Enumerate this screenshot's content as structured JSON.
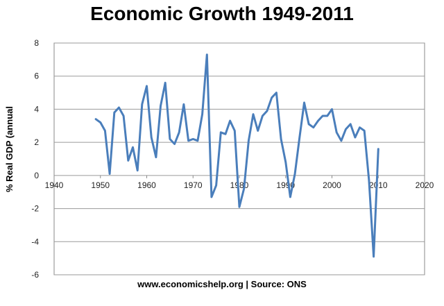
{
  "chart_data": {
    "type": "line",
    "title": "Economic Growth 1949-2011",
    "ylabel": "% Real GDP (annual",
    "xlabel": "",
    "source": "www.economicshelp.org | Source: ONS",
    "xlim": [
      1940,
      2020
    ],
    "ylim": [
      -6,
      8
    ],
    "xticks": [
      1940,
      1950,
      1960,
      1970,
      1980,
      1990,
      2000,
      2010,
      2020
    ],
    "yticks": [
      -6,
      -4,
      -2,
      0,
      2,
      4,
      6,
      8
    ],
    "grid": "horizontal",
    "legend": "none",
    "line_color": "#4a7ebb",
    "series": [
      {
        "x": [
          1949,
          1950,
          1951,
          1952,
          1953,
          1954,
          1955,
          1956,
          1957,
          1958,
          1959,
          1960,
          1961,
          1962,
          1963,
          1964,
          1965,
          1966,
          1967,
          1968,
          1969,
          1970,
          1971,
          1972,
          1973,
          1974,
          1975,
          1976,
          1977,
          1978,
          1979,
          1980,
          1981,
          1982,
          1983,
          1984,
          1985,
          1986,
          1987,
          1988,
          1989,
          1990,
          1991,
          1992,
          1993,
          1994,
          1995,
          1996,
          1997,
          1998,
          1999,
          2000,
          2001,
          2002,
          2003,
          2004,
          2005,
          2006,
          2007,
          2008,
          2009,
          2010
        ],
        "values": [
          3.4,
          3.2,
          2.7,
          0.1,
          3.8,
          4.1,
          3.6,
          0.9,
          1.7,
          0.3,
          4.3,
          5.4,
          2.3,
          1.1,
          4.2,
          5.6,
          2.2,
          1.9,
          2.6,
          4.3,
          2.1,
          2.2,
          2.1,
          3.7,
          7.3,
          -1.3,
          -0.6,
          2.6,
          2.5,
          3.3,
          2.7,
          -1.9,
          -0.8,
          2.1,
          3.7,
          2.7,
          3.6,
          3.9,
          4.7,
          5.0,
          2.2,
          0.8,
          -1.3,
          0.1,
          2.3,
          4.4,
          3.1,
          2.9,
          3.3,
          3.6,
          3.6,
          4.0,
          2.6,
          2.1,
          2.8,
          3.1,
          2.3,
          2.9,
          2.7,
          -0.3,
          -4.9,
          1.6
        ]
      }
    ]
  }
}
